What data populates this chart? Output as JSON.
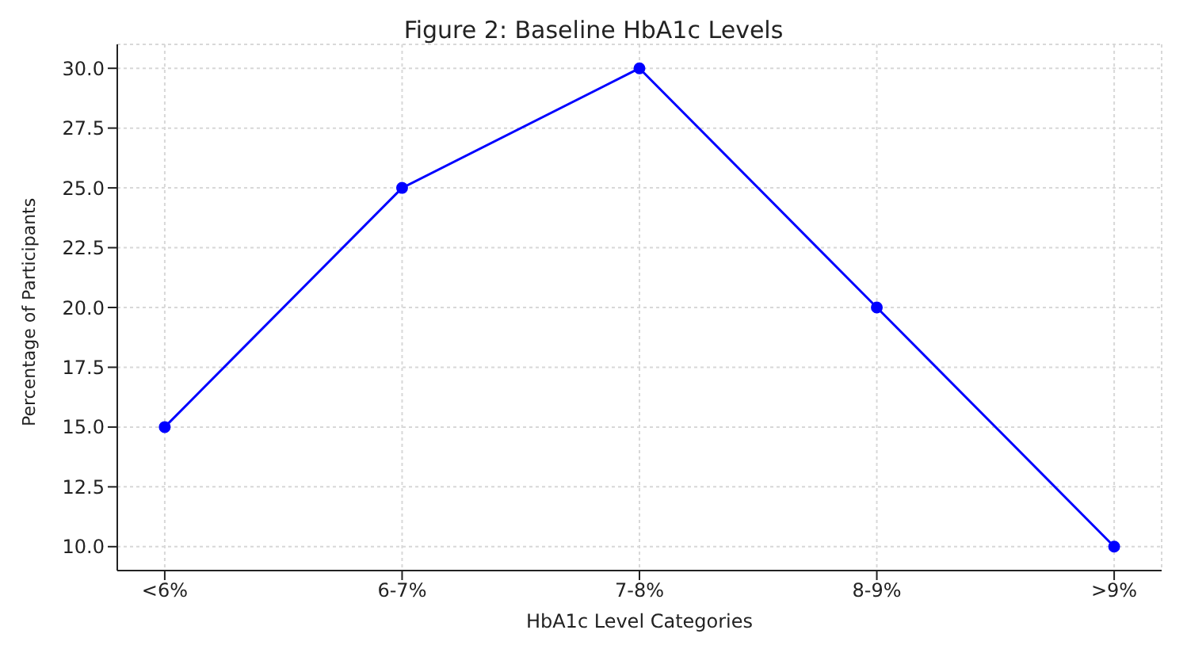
{
  "chart_data": {
    "type": "line",
    "title": "Figure 2: Baseline HbA1c Levels",
    "xlabel": "HbA1c Level Categories",
    "ylabel": "Percentage of Participants",
    "categories": [
      "<6%",
      "6-7%",
      "7-8%",
      "8-9%",
      ">9%"
    ],
    "series": [
      {
        "color": "#0000ff",
        "values": [
          15,
          25,
          30,
          20,
          10
        ]
      }
    ],
    "ylim": [
      9,
      31
    ],
    "yticks": [
      {
        "value": 10,
        "label": "10.0"
      },
      {
        "value": 12.5,
        "label": "12.5"
      },
      {
        "value": 15,
        "label": "15.0"
      },
      {
        "value": 17.5,
        "label": "17.5"
      },
      {
        "value": 20,
        "label": "20.0"
      },
      {
        "value": 22.5,
        "label": "22.5"
      },
      {
        "value": 25,
        "label": "25.0"
      },
      {
        "value": 27.5,
        "label": "27.5"
      },
      {
        "value": 30,
        "label": "30.0"
      }
    ],
    "grid": true,
    "marker": "circle",
    "line_style": "solid",
    "legend": false
  }
}
